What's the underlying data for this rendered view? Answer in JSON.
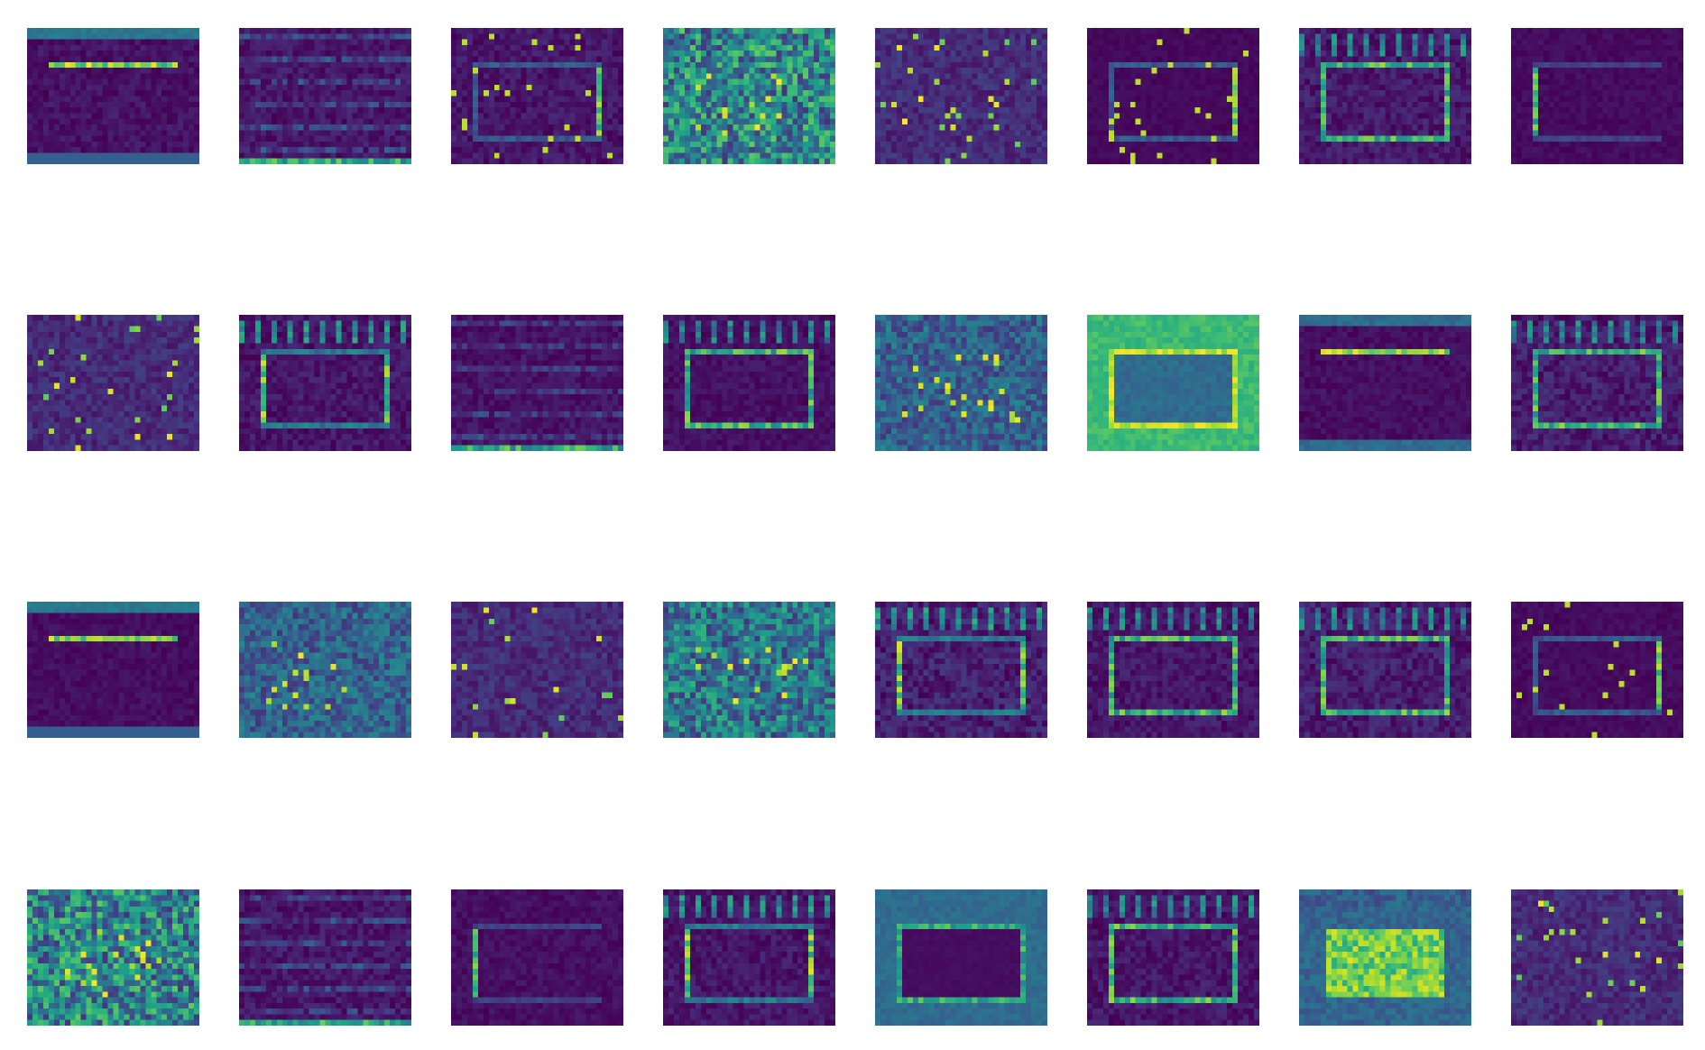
{
  "figure": {
    "kind": "feature-map-grid",
    "rows": 4,
    "cols": 8,
    "colormap": "viridis",
    "colormap_stops": [
      "#440154",
      "#482878",
      "#3e4989",
      "#31688e",
      "#26828e",
      "#1f9e89",
      "#35b779",
      "#6ece58",
      "#b5de2b",
      "#fde725"
    ],
    "axes_visible": false,
    "background": "#ffffff"
  },
  "maps": [
    {
      "index": 0,
      "pattern": "top-band",
      "intensity": 0.25
    },
    {
      "index": 1,
      "pattern": "h-lines",
      "intensity": 0.3
    },
    {
      "index": 2,
      "pattern": "frame-right",
      "intensity": 0.3
    },
    {
      "index": 3,
      "pattern": "noisy-fill",
      "intensity": 0.55
    },
    {
      "index": 4,
      "pattern": "sparse-dots",
      "intensity": 0.3
    },
    {
      "index": 5,
      "pattern": "frame-right",
      "intensity": 0.12
    },
    {
      "index": 6,
      "pattern": "frame-full",
      "intensity": 0.35
    },
    {
      "index": 7,
      "pattern": "frame-left",
      "intensity": 0.15
    },
    {
      "index": 8,
      "pattern": "sparse-dots",
      "intensity": 0.12
    },
    {
      "index": 9,
      "pattern": "frame-sides",
      "intensity": 0.3
    },
    {
      "index": 10,
      "pattern": "h-lines",
      "intensity": 0.25
    },
    {
      "index": 11,
      "pattern": "frame-full",
      "intensity": 0.22
    },
    {
      "index": 12,
      "pattern": "noisy-fill",
      "intensity": 0.3
    },
    {
      "index": 13,
      "pattern": "bright-border",
      "intensity": 0.65
    },
    {
      "index": 14,
      "pattern": "top-line",
      "intensity": 0.2
    },
    {
      "index": 15,
      "pattern": "frame-full",
      "intensity": 0.4
    },
    {
      "index": 16,
      "pattern": "top-band",
      "intensity": 0.18
    },
    {
      "index": 17,
      "pattern": "noisy-fill",
      "intensity": 0.3
    },
    {
      "index": 18,
      "pattern": "sparse-dots",
      "intensity": 0.12
    },
    {
      "index": 19,
      "pattern": "noisy-fill",
      "intensity": 0.45
    },
    {
      "index": 20,
      "pattern": "frame-sides",
      "intensity": 0.45
    },
    {
      "index": 21,
      "pattern": "frame-full",
      "intensity": 0.3
    },
    {
      "index": 22,
      "pattern": "frame-full",
      "intensity": 0.4
    },
    {
      "index": 23,
      "pattern": "frame-right",
      "intensity": 0.15
    },
    {
      "index": 24,
      "pattern": "noisy-fill",
      "intensity": 0.55
    },
    {
      "index": 25,
      "pattern": "h-lines",
      "intensity": 0.3
    },
    {
      "index": 26,
      "pattern": "frame-left",
      "intensity": 0.2
    },
    {
      "index": 27,
      "pattern": "frame-sides",
      "intensity": 0.3
    },
    {
      "index": 28,
      "pattern": "dark-inner",
      "intensity": 0.35
    },
    {
      "index": 29,
      "pattern": "frame-full",
      "intensity": 0.3
    },
    {
      "index": 30,
      "pattern": "bright-inner",
      "intensity": 0.7
    },
    {
      "index": 31,
      "pattern": "sparse-dots",
      "intensity": 0.1
    }
  ]
}
